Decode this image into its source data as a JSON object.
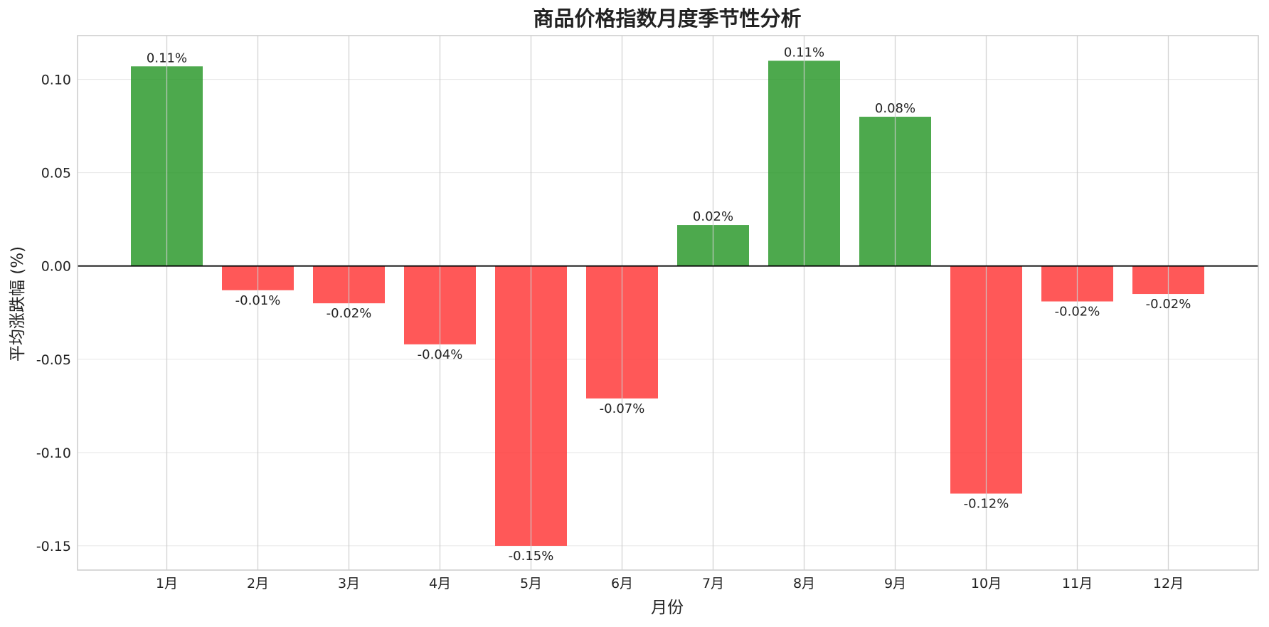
{
  "chart_data": {
    "type": "bar",
    "title": "商品价格指数月度季节性分析",
    "xlabel": "月份",
    "ylabel": "平均涨跌幅 (%)",
    "categories": [
      "1月",
      "2月",
      "3月",
      "4月",
      "5月",
      "6月",
      "7月",
      "8月",
      "9月",
      "10月",
      "11月",
      "12月"
    ],
    "values": [
      0.107,
      -0.013,
      -0.02,
      -0.042,
      -0.15,
      -0.071,
      0.022,
      0.11,
      0.08,
      -0.122,
      -0.019,
      -0.015
    ],
    "value_labels": [
      "0.11%",
      "-0.01%",
      "-0.02%",
      "-0.04%",
      "-0.15%",
      "-0.07%",
      "0.02%",
      "0.11%",
      "0.08%",
      "-0.12%",
      "-0.02%",
      "-0.02%"
    ],
    "ylim": [
      -0.163,
      0.1235
    ],
    "yticks": [
      0.1,
      0.05,
      0.0,
      -0.05,
      -0.1,
      -0.15
    ],
    "ytick_labels": [
      "0.10",
      "0.05",
      "0.00",
      "-0.05",
      "-0.10",
      "-0.15"
    ],
    "grid": true,
    "zero_line": true,
    "colors": {
      "positive": "#2e9a2e",
      "negative": "#ff3b3b",
      "zero_line": "#000000",
      "grid": "#cccccc",
      "frame": "#cccccc",
      "text": "#222222"
    }
  }
}
